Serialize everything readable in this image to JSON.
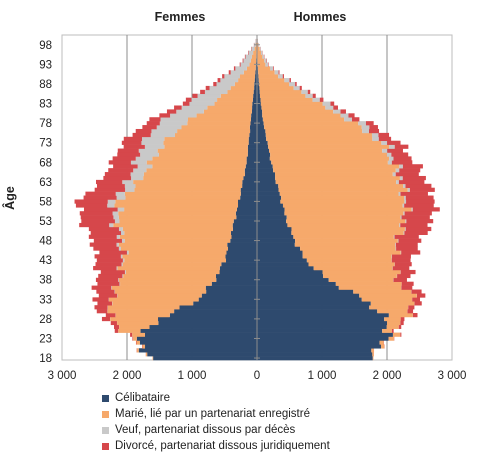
{
  "chart_data": {
    "type": "population-pyramid",
    "left_title": "Femmes",
    "right_title": "Hommes",
    "ylabel": "Âge",
    "x_ticks": [
      -3000,
      -2000,
      -1000,
      0,
      1000,
      2000,
      3000
    ],
    "x_tick_labels": [
      "3 000",
      "2 000",
      "1 000",
      "0",
      "1 000",
      "2 000",
      "3 000"
    ],
    "xlim": [
      -3000,
      3000
    ],
    "age_range": [
      18,
      100
    ],
    "y_ticks": [
      18,
      23,
      28,
      33,
      38,
      43,
      48,
      53,
      58,
      63,
      68,
      73,
      78,
      83,
      88,
      93,
      98
    ],
    "grid": "vertical",
    "legend_position": "bottom",
    "series": [
      {
        "name": "Célibataire",
        "color": "#2e4a6e"
      },
      {
        "name": "Marié, lié par un partenariat enregistré",
        "color": "#f6a96b"
      },
      {
        "name": "Veuf, partenariat dissous par décès",
        "color": "#c9c9c9"
      },
      {
        "name": "Divorcé, partenariat dissous juridiquement",
        "color": "#d6474b"
      }
    ],
    "age_anchors": [
      18,
      23,
      28,
      33,
      38,
      43,
      48,
      53,
      58,
      63,
      68,
      73,
      78,
      83,
      88,
      93,
      98,
      100
    ],
    "femmes": {
      "celibataire": [
        1650,
        1850,
        1500,
        900,
        650,
        500,
        420,
        350,
        280,
        220,
        160,
        130,
        100,
        70,
        40,
        15,
        5,
        0
      ],
      "marie": [
        10,
        60,
        750,
        1350,
        1450,
        1550,
        1650,
        1780,
        1850,
        1600,
        1470,
        1300,
        1000,
        600,
        300,
        100,
        15,
        0
      ],
      "veuf": [
        0,
        0,
        2,
        5,
        10,
        20,
        40,
        70,
        120,
        170,
        240,
        330,
        420,
        400,
        300,
        140,
        25,
        0
      ],
      "divorce": [
        0,
        10,
        120,
        250,
        350,
        400,
        420,
        500,
        510,
        420,
        360,
        310,
        200,
        100,
        50,
        15,
        3,
        0
      ]
    },
    "hommes": {
      "celibataire": [
        1700,
        2000,
        2000,
        1650,
        1100,
        750,
        580,
        460,
        380,
        300,
        220,
        160,
        100,
        60,
        30,
        10,
        3,
        0
      ],
      "marie": [
        10,
        80,
        250,
        800,
        1050,
        1350,
        1580,
        1800,
        1900,
        1900,
        1850,
        1750,
        1400,
        900,
        450,
        120,
        15,
        0
      ],
      "veuf": [
        0,
        0,
        1,
        2,
        3,
        5,
        10,
        15,
        25,
        40,
        60,
        90,
        120,
        120,
        90,
        40,
        8,
        0
      ],
      "divorce": [
        0,
        5,
        60,
        120,
        200,
        280,
        350,
        420,
        440,
        380,
        300,
        200,
        120,
        60,
        25,
        8,
        2,
        0
      ]
    }
  }
}
